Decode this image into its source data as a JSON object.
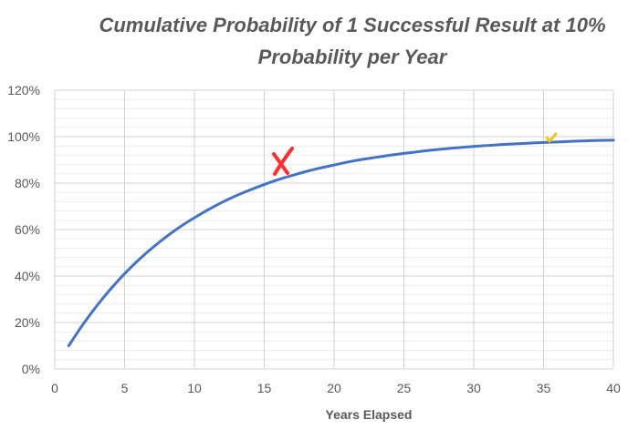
{
  "chart_data": {
    "type": "line",
    "title_line1": "Cumulative Probability of 1 Successful Result at 10%",
    "title_line2": "Probability per Year",
    "xlabel": "Years Elapsed",
    "ylabel": "",
    "xlim": [
      0,
      40
    ],
    "ylim": [
      0,
      1.2
    ],
    "x_ticks": [
      0,
      5,
      10,
      15,
      20,
      25,
      30,
      35,
      40
    ],
    "x_tick_labels": [
      "0",
      "5",
      "10",
      "15",
      "20",
      "25",
      "30",
      "35",
      "40"
    ],
    "y_ticks": [
      0,
      0.2,
      0.4,
      0.6,
      0.8,
      1.0,
      1.2
    ],
    "y_tick_labels": [
      "0%",
      "20%",
      "40%",
      "60%",
      "80%",
      "100%",
      "120%"
    ],
    "grid": true,
    "legend": "none",
    "series": [
      {
        "color": "#4472c4",
        "x": [
          1,
          2,
          3,
          4,
          5,
          6,
          7,
          8,
          9,
          10,
          11,
          12,
          13,
          14,
          15,
          16,
          17,
          18,
          19,
          20,
          21,
          22,
          23,
          24,
          25,
          26,
          27,
          28,
          29,
          30,
          31,
          32,
          33,
          34,
          35,
          36,
          37,
          38,
          39,
          40
        ],
        "y": [
          0.1,
          0.19,
          0.271,
          0.344,
          0.41,
          0.469,
          0.522,
          0.57,
          0.613,
          0.651,
          0.686,
          0.718,
          0.746,
          0.771,
          0.794,
          0.815,
          0.833,
          0.85,
          0.865,
          0.878,
          0.891,
          0.902,
          0.911,
          0.92,
          0.928,
          0.935,
          0.942,
          0.948,
          0.953,
          0.958,
          0.962,
          0.966,
          0.969,
          0.972,
          0.975,
          0.977,
          0.98,
          0.982,
          0.984,
          0.985
        ]
      }
    ]
  },
  "annotations": {
    "x_mark_color": "#ff2d2d",
    "tick_mark_color": "#f2c51a"
  }
}
